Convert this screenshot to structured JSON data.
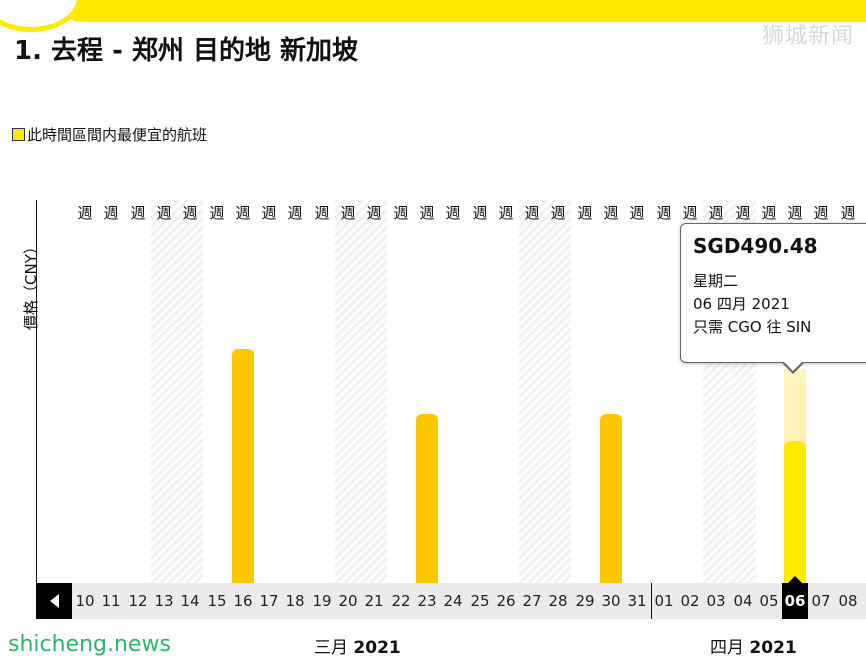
{
  "header": {
    "brand_watermark": "狮城新闻",
    "title": "1. 去程 - 郑州 目的地 新加坡"
  },
  "legend": {
    "label": "此時間區間内最便宜的航班"
  },
  "chart_data": {
    "type": "bar",
    "ylabel": "價格（CNY）",
    "week_label": "週",
    "categories": [
      "10",
      "11",
      "12",
      "13",
      "14",
      "15",
      "16",
      "17",
      "18",
      "19",
      "20",
      "21",
      "22",
      "23",
      "24",
      "25",
      "26",
      "27",
      "28",
      "29",
      "30",
      "31",
      "01",
      "02",
      "03",
      "04",
      "05",
      "06",
      "07",
      "08"
    ],
    "weekend_days": [
      "13",
      "14",
      "20",
      "21",
      "27",
      "28",
      "03",
      "04"
    ],
    "bars": [
      {
        "date": "16",
        "value": 0.61,
        "selected": false
      },
      {
        "date": "23",
        "value": 0.44,
        "selected": false
      },
      {
        "date": "30",
        "value": 0.44,
        "selected": false
      },
      {
        "date": "06",
        "value": 0.37,
        "selected": true
      }
    ],
    "ghost": {
      "date": "06",
      "value": 0.56
    },
    "selected_date": "06"
  },
  "months": [
    {
      "name": "三月",
      "year": "2021"
    },
    {
      "name": "四月",
      "year": "2021"
    }
  ],
  "tooltip": {
    "price": "SGD490.48",
    "weekday": "星期二",
    "date": "06 四月 2021",
    "route": "只需 CGO 往 SIN"
  },
  "footer": {
    "brand": "shicheng.news"
  },
  "colors": {
    "accent": "#ffea00",
    "bar": "#ffc700",
    "ghost": "#fff2bd"
  }
}
